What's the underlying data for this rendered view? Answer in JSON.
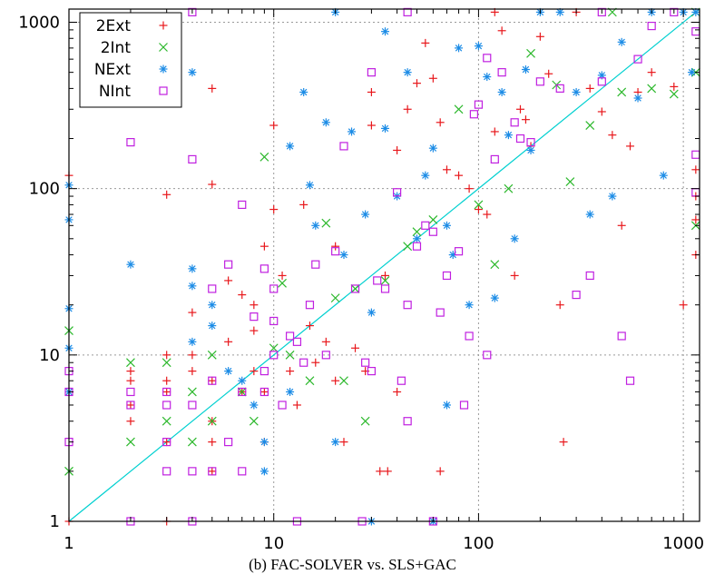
{
  "chart_data": {
    "type": "scatter",
    "caption": "(b) FAC-SOLVER vs. SLS+GAC",
    "x_scale": "log",
    "y_scale": "log",
    "xlim": [
      1,
      1200
    ],
    "ylim": [
      1,
      1200
    ],
    "x_ticks": [
      1,
      10,
      100,
      1000
    ],
    "y_ticks": [
      1,
      10,
      100,
      1000
    ],
    "x_tick_labels": [
      "1",
      "10",
      "100",
      "1000"
    ],
    "y_tick_labels": [
      "1",
      "10",
      "100",
      "1000"
    ],
    "grid": true,
    "diagonal_line": true,
    "legend_position": "top-left",
    "colors": {
      "2Ext": "#e8181c",
      "2Int": "#2cb82c",
      "NExt": "#1c8ce6",
      "NInt": "#c020e0",
      "diagonal": "#00d0d0",
      "grid": "#9a9a9a"
    },
    "series": [
      {
        "name": "2Ext",
        "marker": "plus",
        "points": [
          [
            1,
            120
          ],
          [
            3,
            92
          ],
          [
            5,
            106
          ],
          [
            10,
            240
          ],
          [
            5,
            400
          ],
          [
            3,
            10
          ],
          [
            2,
            8
          ],
          [
            2,
            7
          ],
          [
            2,
            5
          ],
          [
            2,
            4
          ],
          [
            3,
            7
          ],
          [
            3,
            6
          ],
          [
            3,
            3
          ],
          [
            4,
            18
          ],
          [
            4,
            10
          ],
          [
            4,
            8
          ],
          [
            5,
            7
          ],
          [
            5,
            4
          ],
          [
            5,
            3
          ],
          [
            5,
            2
          ],
          [
            6,
            28
          ],
          [
            6,
            12
          ],
          [
            7,
            23
          ],
          [
            7,
            6
          ],
          [
            8,
            20
          ],
          [
            8,
            14
          ],
          [
            8,
            8
          ],
          [
            9,
            45
          ],
          [
            9,
            6
          ],
          [
            9,
            3
          ],
          [
            10,
            75
          ],
          [
            11,
            30
          ],
          [
            12,
            8
          ],
          [
            13,
            5
          ],
          [
            14,
            80
          ],
          [
            15,
            15
          ],
          [
            16,
            9
          ],
          [
            18,
            12
          ],
          [
            20,
            45
          ],
          [
            20,
            7
          ],
          [
            22,
            3
          ],
          [
            25,
            11
          ],
          [
            28,
            8
          ],
          [
            30,
            380
          ],
          [
            30,
            240
          ],
          [
            35,
            30
          ],
          [
            40,
            170
          ],
          [
            40,
            6
          ],
          [
            45,
            300
          ],
          [
            50,
            430
          ],
          [
            55,
            750
          ],
          [
            60,
            460
          ],
          [
            65,
            250
          ],
          [
            70,
            130
          ],
          [
            80,
            120
          ],
          [
            90,
            100
          ],
          [
            100,
            75
          ],
          [
            110,
            70
          ],
          [
            120,
            220
          ],
          [
            120,
            1150
          ],
          [
            130,
            890
          ],
          [
            150,
            30
          ],
          [
            160,
            300
          ],
          [
            170,
            260
          ],
          [
            180,
            180
          ],
          [
            200,
            820
          ],
          [
            220,
            490
          ],
          [
            250,
            20
          ],
          [
            260,
            3
          ],
          [
            300,
            1150
          ],
          [
            350,
            400
          ],
          [
            400,
            290
          ],
          [
            450,
            210
          ],
          [
            500,
            60
          ],
          [
            550,
            180
          ],
          [
            600,
            380
          ],
          [
            700,
            500
          ],
          [
            900,
            410
          ],
          [
            1000,
            20
          ],
          [
            1150,
            130
          ],
          [
            1150,
            90
          ],
          [
            1150,
            40
          ],
          [
            1150,
            65
          ],
          [
            1,
            1
          ],
          [
            3,
            1
          ],
          [
            33,
            2
          ],
          [
            36,
            2
          ],
          [
            65,
            2
          ]
        ]
      },
      {
        "name": "2Int",
        "marker": "cross",
        "points": [
          [
            1,
            14
          ],
          [
            1,
            2
          ],
          [
            2,
            9
          ],
          [
            2,
            3
          ],
          [
            3,
            9
          ],
          [
            3,
            4
          ],
          [
            4,
            6
          ],
          [
            4,
            3
          ],
          [
            5,
            10
          ],
          [
            5,
            4
          ],
          [
            7,
            6
          ],
          [
            8,
            4
          ],
          [
            9,
            155
          ],
          [
            10,
            11
          ],
          [
            11,
            27
          ],
          [
            12,
            10
          ],
          [
            15,
            7
          ],
          [
            18,
            62
          ],
          [
            20,
            22
          ],
          [
            22,
            7
          ],
          [
            25,
            25
          ],
          [
            28,
            4
          ],
          [
            35,
            28
          ],
          [
            45,
            45
          ],
          [
            50,
            55
          ],
          [
            60,
            65
          ],
          [
            80,
            300
          ],
          [
            100,
            80
          ],
          [
            120,
            35
          ],
          [
            140,
            100
          ],
          [
            180,
            650
          ],
          [
            240,
            420
          ],
          [
            280,
            110
          ],
          [
            350,
            240
          ],
          [
            450,
            1150
          ],
          [
            500,
            380
          ],
          [
            700,
            400
          ],
          [
            900,
            370
          ],
          [
            1150,
            500
          ],
          [
            1150,
            60
          ],
          [
            1150,
            1150
          ]
        ]
      },
      {
        "name": "NExt",
        "marker": "star",
        "points": [
          [
            1,
            105
          ],
          [
            1,
            65
          ],
          [
            1,
            19
          ],
          [
            1,
            11
          ],
          [
            1,
            6
          ],
          [
            2,
            35
          ],
          [
            4,
            33
          ],
          [
            4,
            26
          ],
          [
            4,
            12
          ],
          [
            5,
            20
          ],
          [
            5,
            15
          ],
          [
            6,
            8
          ],
          [
            7,
            7
          ],
          [
            8,
            5
          ],
          [
            9,
            3
          ],
          [
            9,
            2
          ],
          [
            12,
            180
          ],
          [
            12,
            6
          ],
          [
            14,
            380
          ],
          [
            15,
            105
          ],
          [
            16,
            60
          ],
          [
            18,
            250
          ],
          [
            22,
            40
          ],
          [
            24,
            220
          ],
          [
            28,
            70
          ],
          [
            30,
            18
          ],
          [
            35,
            230
          ],
          [
            35,
            880
          ],
          [
            40,
            90
          ],
          [
            45,
            500
          ],
          [
            50,
            50
          ],
          [
            55,
            120
          ],
          [
            60,
            175
          ],
          [
            70,
            60
          ],
          [
            75,
            40
          ],
          [
            80,
            700
          ],
          [
            90,
            20
          ],
          [
            100,
            720
          ],
          [
            110,
            470
          ],
          [
            120,
            22
          ],
          [
            130,
            380
          ],
          [
            140,
            210
          ],
          [
            150,
            50
          ],
          [
            170,
            520
          ],
          [
            180,
            170
          ],
          [
            200,
            1150
          ],
          [
            250,
            1150
          ],
          [
            300,
            380
          ],
          [
            350,
            70
          ],
          [
            400,
            480
          ],
          [
            450,
            90
          ],
          [
            500,
            760
          ],
          [
            600,
            350
          ],
          [
            700,
            1150
          ],
          [
            800,
            120
          ],
          [
            1000,
            1150
          ],
          [
            1100,
            500
          ],
          [
            1150,
            1150
          ],
          [
            4,
            500
          ],
          [
            60,
            1
          ],
          [
            70,
            5
          ],
          [
            20,
            1150
          ],
          [
            30,
            1
          ],
          [
            20,
            3
          ]
        ]
      },
      {
        "name": "NInt",
        "marker": "square",
        "points": [
          [
            2,
            190
          ],
          [
            4,
            150
          ],
          [
            7,
            80
          ],
          [
            1,
            8
          ],
          [
            1,
            6
          ],
          [
            1,
            3
          ],
          [
            2,
            6
          ],
          [
            2,
            5
          ],
          [
            3,
            6
          ],
          [
            3,
            5
          ],
          [
            3,
            3
          ],
          [
            3,
            2
          ],
          [
            4,
            5
          ],
          [
            4,
            2
          ],
          [
            5,
            25
          ],
          [
            5,
            7
          ],
          [
            5,
            2
          ],
          [
            6,
            35
          ],
          [
            6,
            3
          ],
          [
            7,
            6
          ],
          [
            7,
            2
          ],
          [
            8,
            17
          ],
          [
            9,
            33
          ],
          [
            9,
            8
          ],
          [
            9,
            6
          ],
          [
            10,
            25
          ],
          [
            10,
            16
          ],
          [
            10,
            10
          ],
          [
            11,
            5
          ],
          [
            12,
            13
          ],
          [
            13,
            12
          ],
          [
            14,
            9
          ],
          [
            15,
            20
          ],
          [
            16,
            35
          ],
          [
            18,
            10
          ],
          [
            20,
            42
          ],
          [
            22,
            180
          ],
          [
            25,
            25
          ],
          [
            28,
            9
          ],
          [
            30,
            500
          ],
          [
            32,
            28
          ],
          [
            35,
            25
          ],
          [
            40,
            95
          ],
          [
            42,
            7
          ],
          [
            45,
            20
          ],
          [
            50,
            45
          ],
          [
            55,
            60
          ],
          [
            60,
            55
          ],
          [
            65,
            18
          ],
          [
            70,
            30
          ],
          [
            80,
            42
          ],
          [
            90,
            13
          ],
          [
            95,
            280
          ],
          [
            100,
            320
          ],
          [
            110,
            610
          ],
          [
            120,
            150
          ],
          [
            130,
            500
          ],
          [
            150,
            250
          ],
          [
            160,
            200
          ],
          [
            180,
            190
          ],
          [
            200,
            440
          ],
          [
            250,
            400
          ],
          [
            300,
            23
          ],
          [
            350,
            30
          ],
          [
            400,
            440
          ],
          [
            500,
            13
          ],
          [
            550,
            7
          ],
          [
            600,
            600
          ],
          [
            700,
            950
          ],
          [
            900,
            1150
          ],
          [
            1150,
            880
          ],
          [
            1150,
            95
          ],
          [
            1150,
            160
          ],
          [
            13,
            1
          ],
          [
            27,
            1
          ],
          [
            45,
            4
          ],
          [
            60,
            1
          ],
          [
            85,
            5
          ],
          [
            2,
            1
          ],
          [
            4,
            1
          ],
          [
            30,
            8
          ],
          [
            45,
            1150
          ],
          [
            400,
            1150
          ],
          [
            4,
            1150
          ],
          [
            110,
            10
          ]
        ]
      }
    ]
  }
}
